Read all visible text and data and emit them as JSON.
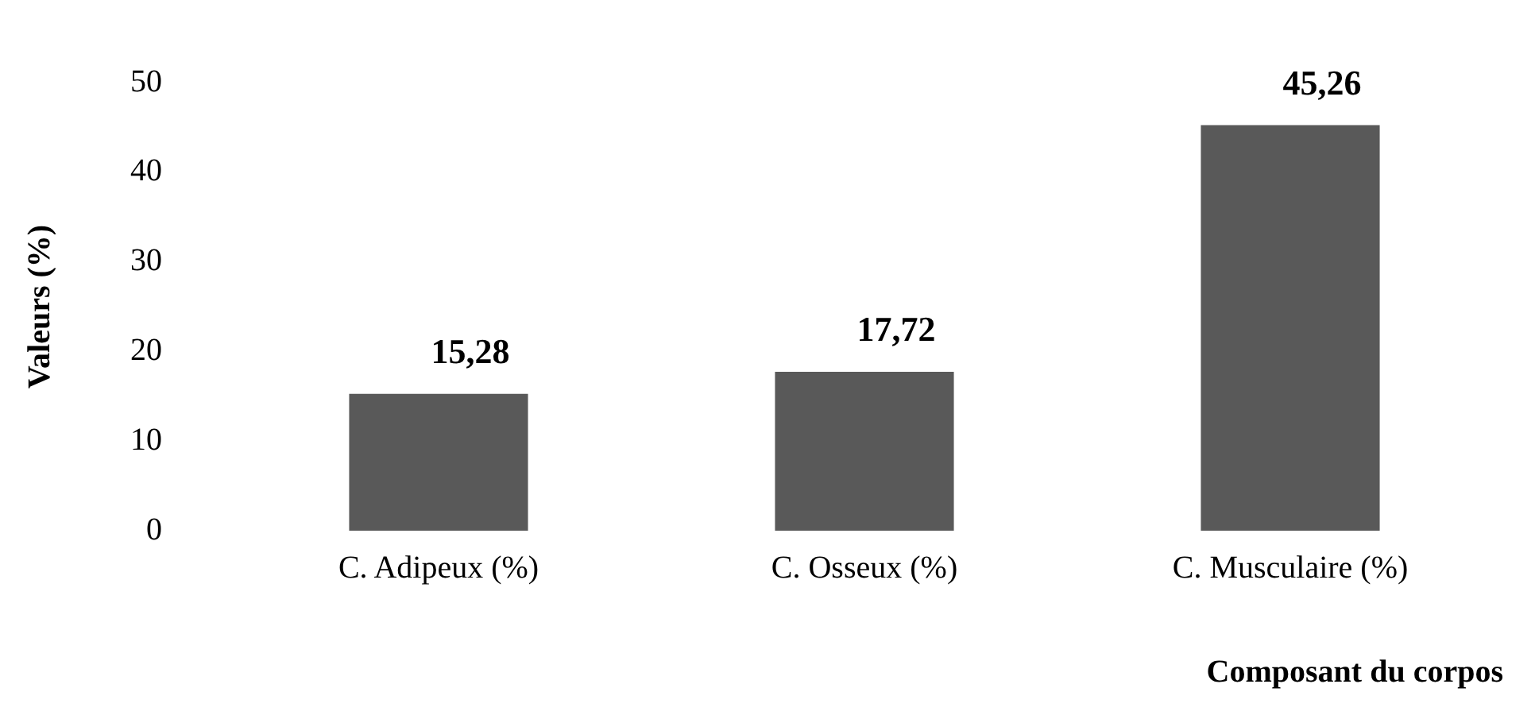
{
  "chart_data": {
    "type": "bar",
    "xlabel": "Composant du corpos",
    "ylabel": "Valeurs (%)",
    "categories": [
      "C. Adipeux (%)",
      "C. Osseux (%)",
      "C. Musculaire (%)"
    ],
    "values": [
      15.28,
      17.72,
      45.26
    ],
    "color": "#595959",
    "value_labels": [
      "15,28",
      "17,72",
      "45,26"
    ],
    "ylim": [
      0,
      50
    ],
    "yticks": [
      0,
      10,
      20,
      30,
      40,
      50
    ],
    "grid": false,
    "legend": false
  }
}
